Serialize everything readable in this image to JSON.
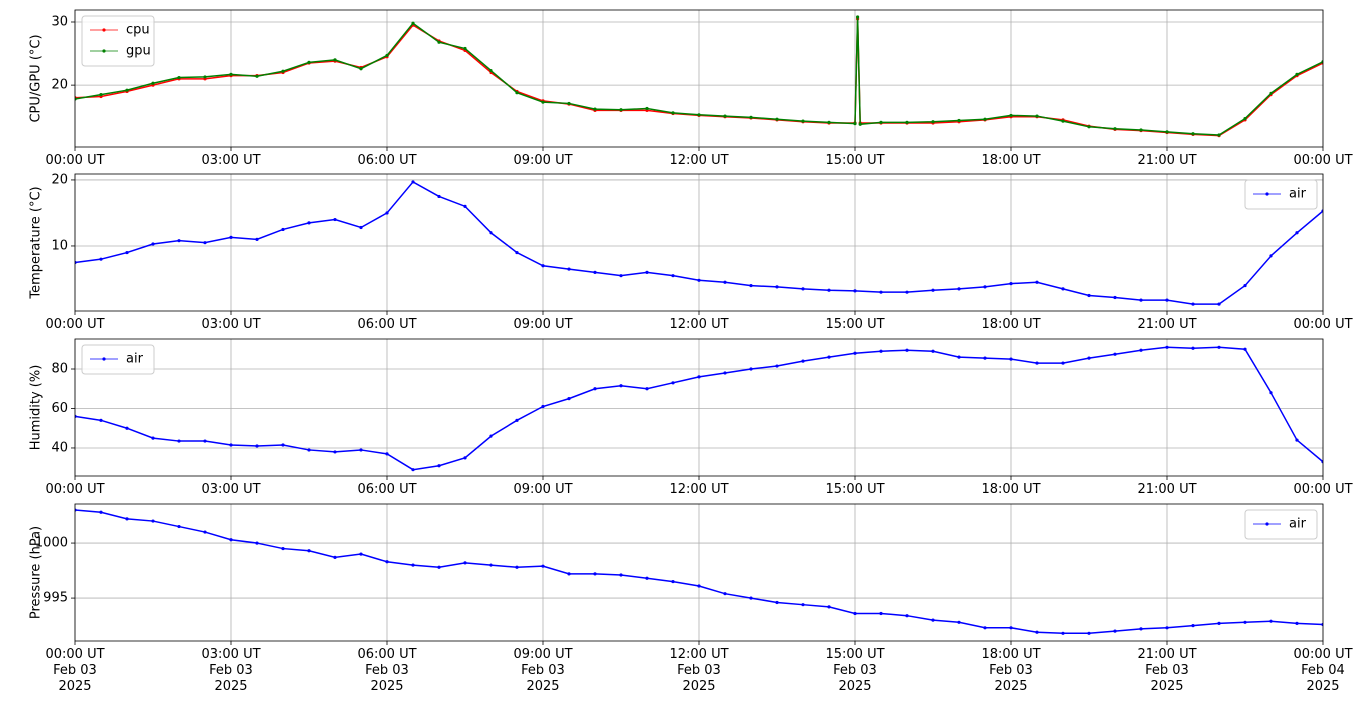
{
  "chart_data": [
    {
      "type": "line",
      "ylabel": "CPU/GPU (°C)",
      "legend": "upper left",
      "grid": true,
      "xlim": [
        "2025-02-03 00:00",
        "2025-02-04 00:00"
      ],
      "xticks": [
        {
          "value": "2025-02-03 00:00",
          "label": "00:00 UT"
        },
        {
          "value": "2025-02-03 03:00",
          "label": "03:00 UT"
        },
        {
          "value": "2025-02-03 06:00",
          "label": "06:00 UT"
        },
        {
          "value": "2025-02-03 09:00",
          "label": "09:00 UT"
        },
        {
          "value": "2025-02-03 12:00",
          "label": "12:00 UT"
        },
        {
          "value": "2025-02-03 15:00",
          "label": "15:00 UT"
        },
        {
          "value": "2025-02-03 18:00",
          "label": "18:00 UT"
        },
        {
          "value": "2025-02-03 21:00",
          "label": "21:00 UT"
        },
        {
          "value": "2025-02-04 00:00",
          "label": "00:00 UT"
        }
      ],
      "ylim": [
        10.2,
        31.9
      ],
      "yticks": [
        20,
        30
      ],
      "x": [
        "2025-02-03 00:00",
        "2025-02-03 00:30",
        "2025-02-03 01:00",
        "2025-02-03 01:30",
        "2025-02-03 02:00",
        "2025-02-03 02:30",
        "2025-02-03 03:00",
        "2025-02-03 03:30",
        "2025-02-03 04:00",
        "2025-02-03 04:30",
        "2025-02-03 05:00",
        "2025-02-03 05:30",
        "2025-02-03 06:00",
        "2025-02-03 06:30",
        "2025-02-03 07:00",
        "2025-02-03 07:30",
        "2025-02-03 08:00",
        "2025-02-03 08:30",
        "2025-02-03 09:00",
        "2025-02-03 09:30",
        "2025-02-03 10:00",
        "2025-02-03 10:30",
        "2025-02-03 11:00",
        "2025-02-03 11:30",
        "2025-02-03 12:00",
        "2025-02-03 12:30",
        "2025-02-03 13:00",
        "2025-02-03 13:30",
        "2025-02-03 14:00",
        "2025-02-03 14:30",
        "2025-02-03 15:00",
        "2025-02-03 15:03",
        "2025-02-03 15:06",
        "2025-02-03 15:30",
        "2025-02-03 16:00",
        "2025-02-03 16:30",
        "2025-02-03 17:00",
        "2025-02-03 17:30",
        "2025-02-03 18:00",
        "2025-02-03 18:30",
        "2025-02-03 19:00",
        "2025-02-03 19:30",
        "2025-02-03 20:00",
        "2025-02-03 20:30",
        "2025-02-03 21:00",
        "2025-02-03 21:30",
        "2025-02-03 22:00",
        "2025-02-03 22:30",
        "2025-02-03 23:00",
        "2025-02-03 23:30",
        "2025-02-04 00:00"
      ],
      "series": [
        {
          "name": "cpu",
          "color": "#ff0000",
          "values": [
            18,
            18.2,
            19,
            20,
            21,
            21,
            21.5,
            21.5,
            22,
            23.5,
            23.8,
            22.8,
            24.5,
            29.5,
            27,
            25.5,
            22,
            19,
            17.5,
            17,
            16,
            16,
            16,
            15.5,
            15.2,
            15,
            14.8,
            14.5,
            14.2,
            14,
            14,
            30.5,
            14,
            14,
            14,
            14,
            14.2,
            14.5,
            15,
            15,
            14.5,
            13.5,
            13,
            12.8,
            12.5,
            12.2,
            12,
            14.5,
            18.5,
            21.5,
            23.5
          ]
        },
        {
          "name": "gpu",
          "color": "#008000",
          "values": [
            17.8,
            18.5,
            19.2,
            20.3,
            21.2,
            21.3,
            21.7,
            21.4,
            22.2,
            23.6,
            24,
            22.6,
            24.7,
            29.8,
            26.8,
            25.8,
            22.3,
            18.8,
            17.3,
            17.1,
            16.2,
            16.1,
            16.3,
            15.6,
            15.3,
            15.1,
            14.9,
            14.6,
            14.3,
            14.1,
            13.9,
            30.8,
            13.8,
            14.1,
            14.1,
            14.2,
            14.4,
            14.6,
            15.2,
            15.1,
            14.3,
            13.4,
            13.1,
            12.9,
            12.6,
            12.3,
            12.1,
            14.7,
            18.7,
            21.7,
            23.7
          ]
        }
      ]
    },
    {
      "type": "line",
      "ylabel": "Temperature (°C)",
      "legend": "upper right",
      "grid": true,
      "xlim": [
        "2025-02-03 00:00",
        "2025-02-04 00:00"
      ],
      "xticks": [
        {
          "value": "2025-02-03 00:00",
          "label": "00:00 UT"
        },
        {
          "value": "2025-02-03 03:00",
          "label": "03:00 UT"
        },
        {
          "value": "2025-02-03 06:00",
          "label": "06:00 UT"
        },
        {
          "value": "2025-02-03 09:00",
          "label": "09:00 UT"
        },
        {
          "value": "2025-02-03 12:00",
          "label": "12:00 UT"
        },
        {
          "value": "2025-02-03 15:00",
          "label": "15:00 UT"
        },
        {
          "value": "2025-02-03 18:00",
          "label": "18:00 UT"
        },
        {
          "value": "2025-02-03 21:00",
          "label": "21:00 UT"
        },
        {
          "value": "2025-02-04 00:00",
          "label": "00:00 UT"
        }
      ],
      "ylim": [
        0.15,
        20.9
      ],
      "yticks": [
        10,
        20
      ],
      "x": [
        "2025-02-03 00:00",
        "2025-02-03 00:30",
        "2025-02-03 01:00",
        "2025-02-03 01:30",
        "2025-02-03 02:00",
        "2025-02-03 02:30",
        "2025-02-03 03:00",
        "2025-02-03 03:30",
        "2025-02-03 04:00",
        "2025-02-03 04:30",
        "2025-02-03 05:00",
        "2025-02-03 05:30",
        "2025-02-03 06:00",
        "2025-02-03 06:30",
        "2025-02-03 07:00",
        "2025-02-03 07:30",
        "2025-02-03 08:00",
        "2025-02-03 08:30",
        "2025-02-03 09:00",
        "2025-02-03 09:30",
        "2025-02-03 10:00",
        "2025-02-03 10:30",
        "2025-02-03 11:00",
        "2025-02-03 11:30",
        "2025-02-03 12:00",
        "2025-02-03 12:30",
        "2025-02-03 13:00",
        "2025-02-03 13:30",
        "2025-02-03 14:00",
        "2025-02-03 14:30",
        "2025-02-03 15:00",
        "2025-02-03 15:30",
        "2025-02-03 16:00",
        "2025-02-03 16:30",
        "2025-02-03 17:00",
        "2025-02-03 17:30",
        "2025-02-03 18:00",
        "2025-02-03 18:30",
        "2025-02-03 19:00",
        "2025-02-03 19:30",
        "2025-02-03 20:00",
        "2025-02-03 20:30",
        "2025-02-03 21:00",
        "2025-02-03 21:30",
        "2025-02-03 22:00",
        "2025-02-03 22:30",
        "2025-02-03 23:00",
        "2025-02-03 23:30",
        "2025-02-04 00:00"
      ],
      "series": [
        {
          "name": "air",
          "color": "#0000ff",
          "values": [
            7.5,
            8,
            9,
            10.3,
            10.8,
            10.5,
            11.3,
            11,
            12.5,
            13.5,
            14,
            12.8,
            15,
            19.7,
            17.5,
            16,
            12,
            9,
            7,
            6.5,
            6,
            5.5,
            6,
            5.5,
            4.8,
            4.5,
            4,
            3.8,
            3.5,
            3.3,
            3.2,
            3,
            3,
            3.3,
            3.5,
            3.8,
            4.3,
            4.5,
            3.5,
            2.5,
            2.2,
            1.8,
            1.8,
            1.2,
            1.2,
            4,
            8.5,
            12,
            15.3
          ]
        }
      ]
    },
    {
      "type": "line",
      "ylabel": "Humidity (%)",
      "legend": "upper left",
      "grid": true,
      "xlim": [
        "2025-02-03 00:00",
        "2025-02-04 00:00"
      ],
      "xticks": [
        {
          "value": "2025-02-03 00:00",
          "label": "00:00 UT"
        },
        {
          "value": "2025-02-03 03:00",
          "label": "03:00 UT"
        },
        {
          "value": "2025-02-03 06:00",
          "label": "06:00 UT"
        },
        {
          "value": "2025-02-03 09:00",
          "label": "09:00 UT"
        },
        {
          "value": "2025-02-03 12:00",
          "label": "12:00 UT"
        },
        {
          "value": "2025-02-03 15:00",
          "label": "15:00 UT"
        },
        {
          "value": "2025-02-03 18:00",
          "label": "18:00 UT"
        },
        {
          "value": "2025-02-03 21:00",
          "label": "21:00 UT"
        },
        {
          "value": "2025-02-04 00:00",
          "label": "00:00 UT"
        }
      ],
      "ylim": [
        25.8,
        95.2
      ],
      "yticks": [
        40,
        60,
        80
      ],
      "x": [
        "2025-02-03 00:00",
        "2025-02-03 00:30",
        "2025-02-03 01:00",
        "2025-02-03 01:30",
        "2025-02-03 02:00",
        "2025-02-03 02:30",
        "2025-02-03 03:00",
        "2025-02-03 03:30",
        "2025-02-03 04:00",
        "2025-02-03 04:30",
        "2025-02-03 05:00",
        "2025-02-03 05:30",
        "2025-02-03 06:00",
        "2025-02-03 06:30",
        "2025-02-03 07:00",
        "2025-02-03 07:30",
        "2025-02-03 08:00",
        "2025-02-03 08:30",
        "2025-02-03 09:00",
        "2025-02-03 09:30",
        "2025-02-03 10:00",
        "2025-02-03 10:30",
        "2025-02-03 11:00",
        "2025-02-03 11:30",
        "2025-02-03 12:00",
        "2025-02-03 12:30",
        "2025-02-03 13:00",
        "2025-02-03 13:30",
        "2025-02-03 14:00",
        "2025-02-03 14:30",
        "2025-02-03 15:00",
        "2025-02-03 15:30",
        "2025-02-03 16:00",
        "2025-02-03 16:30",
        "2025-02-03 17:00",
        "2025-02-03 17:30",
        "2025-02-03 18:00",
        "2025-02-03 18:30",
        "2025-02-03 19:00",
        "2025-02-03 19:30",
        "2025-02-03 20:00",
        "2025-02-03 20:30",
        "2025-02-03 21:00",
        "2025-02-03 21:30",
        "2025-02-03 22:00",
        "2025-02-03 22:30",
        "2025-02-03 23:00",
        "2025-02-03 23:30",
        "2025-02-04 00:00"
      ],
      "series": [
        {
          "name": "air",
          "color": "#0000ff",
          "values": [
            56,
            54,
            50,
            45,
            43.5,
            43.5,
            41.5,
            41,
            41.5,
            39,
            38,
            39,
            37,
            29,
            31,
            35,
            46,
            54,
            61,
            65,
            70,
            71.5,
            70,
            73,
            76,
            78,
            80,
            81.5,
            84,
            86,
            88,
            89,
            89.5,
            89,
            86,
            85.5,
            85,
            83,
            83,
            85.5,
            87.5,
            89.5,
            91,
            90.5,
            91,
            90,
            68,
            44,
            33
          ]
        }
      ]
    },
    {
      "type": "line",
      "ylabel": "Pressure (hPa)",
      "legend": "upper right",
      "grid": true,
      "xlim": [
        "2025-02-03 00:00",
        "2025-02-04 00:00"
      ],
      "xticks": [
        {
          "value": "2025-02-03 00:00",
          "label": "00:00 UT\nFeb 03\n2025"
        },
        {
          "value": "2025-02-03 03:00",
          "label": "03:00 UT\nFeb 03\n2025"
        },
        {
          "value": "2025-02-03 06:00",
          "label": "06:00 UT\nFeb 03\n2025"
        },
        {
          "value": "2025-02-03 09:00",
          "label": "09:00 UT\nFeb 03\n2025"
        },
        {
          "value": "2025-02-03 12:00",
          "label": "12:00 UT\nFeb 03\n2025"
        },
        {
          "value": "2025-02-03 15:00",
          "label": "15:00 UT\nFeb 03\n2025"
        },
        {
          "value": "2025-02-03 18:00",
          "label": "18:00 UT\nFeb 03\n2025"
        },
        {
          "value": "2025-02-03 21:00",
          "label": "21:00 UT\nFeb 03\n2025"
        },
        {
          "value": "2025-02-04 00:00",
          "label": "00:00 UT\nFeb 04\n2025"
        }
      ],
      "ylim": [
        991.1,
        1003.55
      ],
      "yticks": [
        995,
        1000
      ],
      "x": [
        "2025-02-03 00:00",
        "2025-02-03 00:30",
        "2025-02-03 01:00",
        "2025-02-03 01:30",
        "2025-02-03 02:00",
        "2025-02-03 02:30",
        "2025-02-03 03:00",
        "2025-02-03 03:30",
        "2025-02-03 04:00",
        "2025-02-03 04:30",
        "2025-02-03 05:00",
        "2025-02-03 05:30",
        "2025-02-03 06:00",
        "2025-02-03 06:30",
        "2025-02-03 07:00",
        "2025-02-03 07:30",
        "2025-02-03 08:00",
        "2025-02-03 08:30",
        "2025-02-03 09:00",
        "2025-02-03 09:30",
        "2025-02-03 10:00",
        "2025-02-03 10:30",
        "2025-02-03 11:00",
        "2025-02-03 11:30",
        "2025-02-03 12:00",
        "2025-02-03 12:30",
        "2025-02-03 13:00",
        "2025-02-03 13:30",
        "2025-02-03 14:00",
        "2025-02-03 14:30",
        "2025-02-03 15:00",
        "2025-02-03 15:30",
        "2025-02-03 16:00",
        "2025-02-03 16:30",
        "2025-02-03 17:00",
        "2025-02-03 17:30",
        "2025-02-03 18:00",
        "2025-02-03 18:30",
        "2025-02-03 19:00",
        "2025-02-03 19:30",
        "2025-02-03 20:00",
        "2025-02-03 20:30",
        "2025-02-03 21:00",
        "2025-02-03 21:30",
        "2025-02-03 22:00",
        "2025-02-03 22:30",
        "2025-02-03 23:00",
        "2025-02-03 23:30",
        "2025-02-04 00:00"
      ],
      "series": [
        {
          "name": "air",
          "color": "#0000ff",
          "values": [
            1003,
            1002.8,
            1002.2,
            1002,
            1001.5,
            1001,
            1000.3,
            1000,
            999.5,
            999.3,
            998.7,
            999,
            998.3,
            998,
            997.8,
            998.2,
            998,
            997.8,
            997.9,
            997.2,
            997.2,
            997.1,
            996.8,
            996.5,
            996.1,
            995.4,
            995,
            994.6,
            994.4,
            994.2,
            993.6,
            993.6,
            993.4,
            993,
            992.8,
            992.3,
            992.3,
            991.9,
            991.8,
            991.8,
            992,
            992.2,
            992.3,
            992.5,
            992.7,
            992.8,
            992.9,
            992.7,
            992.6
          ]
        }
      ]
    }
  ]
}
